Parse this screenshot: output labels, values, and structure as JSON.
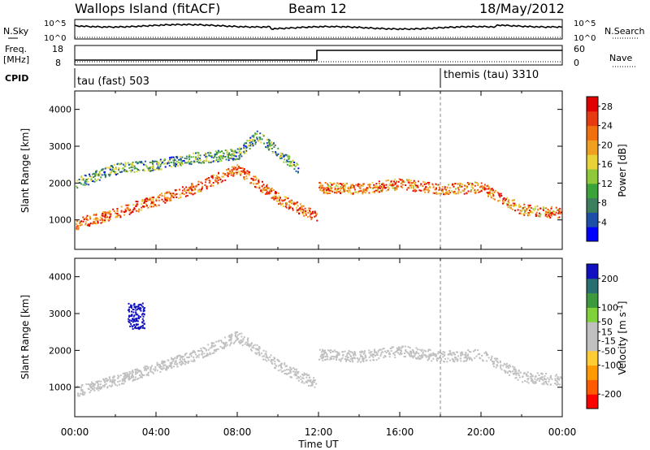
{
  "header": {
    "station": "Wallops Island (fitACF)",
    "beam": "Beam 12",
    "date": "18/May/2012"
  },
  "side_labels": {
    "n_sky": "N.Sky",
    "n_search": "N.Search",
    "freq": "Freq.",
    "freq_unit": "[MHz]",
    "nave": "Nave",
    "cpid": "CPID"
  },
  "noise_axis": {
    "top": "10^5",
    "bottom": "10^0"
  },
  "freq_axis": {
    "ticks": [
      "18",
      "8"
    ],
    "nave_ticks": [
      "60",
      "0"
    ]
  },
  "cpid_segments": [
    {
      "label": "tau (fast) 503",
      "start_hour": 0
    },
    {
      "label": "themis (tau) 3310",
      "start_hour": 18
    }
  ],
  "colors": {
    "axes": "#000000",
    "power_scale": [
      "#0000ff",
      "#1c4fa8",
      "#3b7f5f",
      "#3ca23a",
      "#8fc83a",
      "#e8d23a",
      "#f0a020",
      "#f07010",
      "#e83a10",
      "#e00000"
    ],
    "velocity_scale": [
      "#ff0000",
      "#ff5a00",
      "#ff9900",
      "#ffcc33",
      "#c0c0c0",
      "#c0c0c0",
      "#7fd23a",
      "#3c9a3c",
      "#2a6f6f",
      "#1010c0"
    ]
  },
  "chart_data": [
    {
      "type": "heatmap",
      "title": "",
      "xlabel": "Time UT",
      "ylabel": "Slant Range [km]",
      "xlim": [
        0,
        24
      ],
      "ylim": [
        200,
        4500
      ],
      "x_ticks": [
        "00:00",
        "04:00",
        "08:00",
        "12:00",
        "16:00",
        "20:00",
        "00:00"
      ],
      "y_ticks": [
        1000,
        2000,
        3000,
        4000
      ],
      "colorbar": {
        "label": "Power [dB]",
        "ticks": [
          4,
          8,
          12,
          16,
          20,
          24,
          28
        ],
        "range": [
          0,
          30
        ]
      },
      "features": [
        {
          "name": "band",
          "hours": [
            0,
            2,
            4,
            6,
            8,
            10,
            11.9
          ],
          "range": [
            900,
            1200,
            1550,
            1900,
            2400,
            1600,
            1100
          ],
          "power": 24
        },
        {
          "name": "upper band",
          "hours": [
            0,
            2,
            4,
            6,
            8,
            9,
            11
          ],
          "range": [
            2000,
            2400,
            2500,
            2700,
            2800,
            3300,
            2400
          ],
          "power": 10
        },
        {
          "name": "evening band",
          "hours": [
            12,
            14,
            16,
            18,
            20,
            22,
            24
          ],
          "range": [
            1900,
            1850,
            2000,
            1850,
            1900,
            1300,
            1200
          ],
          "power": 22
        }
      ]
    },
    {
      "type": "heatmap",
      "title": "",
      "xlabel": "Time UT",
      "ylabel": "Slant Range [km]",
      "xlim": [
        0,
        24
      ],
      "ylim": [
        200,
        4500
      ],
      "x_ticks": [
        "00:00",
        "04:00",
        "08:00",
        "12:00",
        "16:00",
        "20:00",
        "00:00"
      ],
      "y_ticks": [
        1000,
        2000,
        3000,
        4000
      ],
      "colorbar": {
        "label": "Velocity [m s^-1]",
        "ticks": [
          200,
          100,
          50,
          15,
          -15,
          -50,
          -100,
          -200
        ],
        "range": [
          -250,
          250
        ]
      },
      "features": [
        {
          "name": "ground scatter band",
          "hours": [
            0,
            2,
            4,
            6,
            8,
            10,
            11.9
          ],
          "range": [
            900,
            1200,
            1550,
            1900,
            2400,
            1600,
            1100
          ],
          "velocity": 0
        },
        {
          "name": "blue patch",
          "hours": [
            2.6,
            3.4
          ],
          "range": [
            2600,
            3300
          ],
          "velocity": 220
        }
      ]
    }
  ]
}
